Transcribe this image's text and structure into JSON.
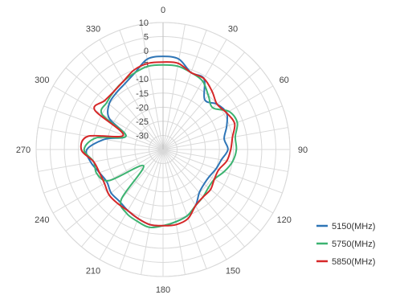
{
  "chart_data": {
    "type": "polar-line",
    "angle_ticks": [
      "0",
      "30",
      "60",
      "90",
      "120",
      "150",
      "180",
      "210",
      "240",
      "270",
      "300",
      "330"
    ],
    "radial_ticks": [
      "10",
      "5",
      "0",
      "-5",
      "-10",
      "-15",
      "-20",
      "-25",
      "-30"
    ],
    "rlim": [
      -35,
      10
    ],
    "grid": true,
    "legend_position": "bottom-right",
    "series": [
      {
        "name": "5150(MHz)",
        "color": "#2e75b6",
        "angles": [
          0,
          10,
          20,
          30,
          40,
          50,
          60,
          70,
          80,
          90,
          100,
          110,
          120,
          130,
          140,
          150,
          160,
          170,
          180,
          190,
          200,
          210,
          220,
          230,
          240,
          250,
          260,
          270,
          280,
          290,
          300,
          310,
          320,
          330,
          340,
          350
        ],
        "values": [
          -2,
          -2.5,
          -6,
          -6,
          -12,
          -10,
          -9,
          -11,
          -13,
          -12,
          -14,
          -15,
          -16,
          -16,
          -15,
          -12,
          -10,
          -9,
          -8,
          -8,
          -9,
          -10,
          -11,
          -11,
          -12,
          -11,
          -9,
          -8,
          -14,
          -21,
          -13,
          -10,
          -9,
          -8,
          -6,
          -2.5
        ]
      },
      {
        "name": "5750(MHz)",
        "color": "#3cb371",
        "angles": [
          0,
          10,
          20,
          30,
          40,
          50,
          60,
          70,
          80,
          90,
          100,
          110,
          120,
          130,
          140,
          150,
          160,
          170,
          180,
          190,
          200,
          210,
          220,
          230,
          240,
          250,
          260,
          270,
          280,
          290,
          300,
          310,
          320,
          330,
          340,
          350
        ],
        "values": [
          -5,
          -5,
          -6,
          -7,
          -10,
          -12,
          -8,
          -7,
          -9,
          -9,
          -10,
          -12,
          -14,
          -14,
          -13,
          -12,
          -10,
          -9,
          -8,
          -7,
          -8,
          -9,
          -12,
          -26,
          -13,
          -10,
          -10,
          -7,
          -11,
          -21,
          -10,
          -9,
          -8,
          -7,
          -6,
          -5
        ]
      },
      {
        "name": "5850(MHz)",
        "color": "#d62728",
        "angles": [
          0,
          10,
          20,
          30,
          40,
          50,
          60,
          70,
          80,
          90,
          100,
          110,
          120,
          130,
          140,
          150,
          160,
          170,
          180,
          190,
          200,
          210,
          220,
          230,
          240,
          250,
          260,
          270,
          280,
          290,
          300,
          310,
          320,
          330,
          340,
          350
        ],
        "values": [
          -4,
          -4,
          -6,
          -6,
          -8,
          -10,
          -9,
          -8,
          -10,
          -11,
          -12,
          -14,
          -14,
          -13,
          -13,
          -12,
          -9,
          -8,
          -8,
          -8,
          -9,
          -10,
          -10,
          -10,
          -11,
          -11,
          -10,
          -6,
          -8,
          -20,
          -7,
          -8,
          -8,
          -7,
          -5,
          -4
        ]
      }
    ]
  }
}
